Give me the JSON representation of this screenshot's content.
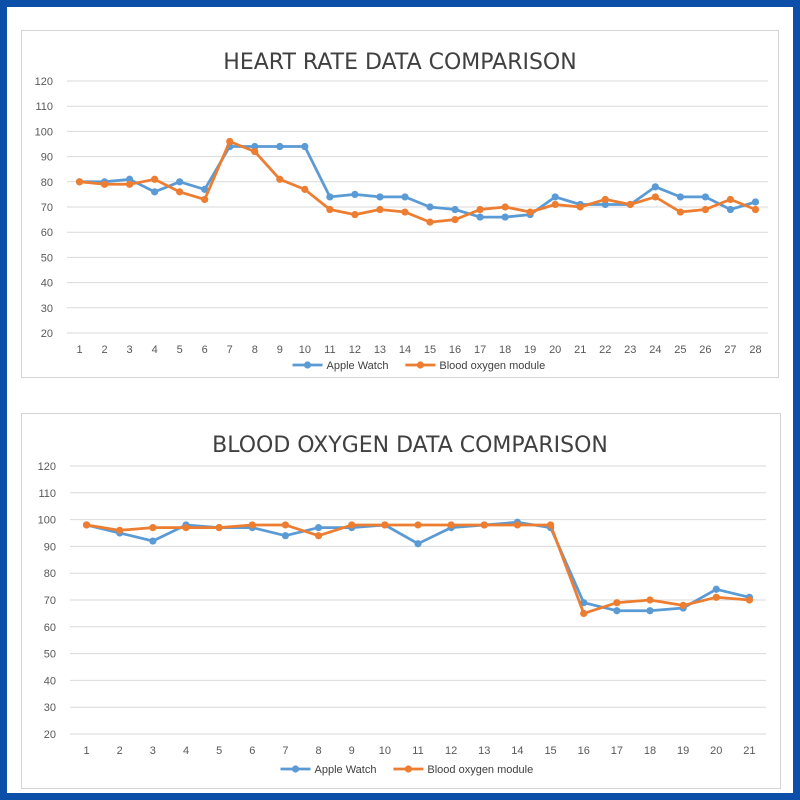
{
  "chart_data": [
    {
      "type": "line",
      "title": "HEART RATE DATA COMPARISON",
      "xlabel": "",
      "ylabel": "",
      "ylim": [
        20,
        120
      ],
      "yticks": [
        20,
        30,
        40,
        50,
        60,
        70,
        80,
        90,
        100,
        110,
        120
      ],
      "categories": [
        "1",
        "2",
        "3",
        "4",
        "5",
        "6",
        "7",
        "8",
        "9",
        "10",
        "11",
        "12",
        "13",
        "14",
        "15",
        "16",
        "17",
        "18",
        "19",
        "20",
        "21",
        "22",
        "23",
        "24",
        "25",
        "26",
        "27",
        "28"
      ],
      "grid": true,
      "legend": "bottom-center",
      "series": [
        {
          "name": "Apple Watch",
          "color": "#5b9bd5",
          "values": [
            80,
            80,
            81,
            76,
            80,
            77,
            94,
            94,
            94,
            94,
            74,
            75,
            74,
            74,
            70,
            69,
            66,
            66,
            67,
            74,
            71,
            71,
            71,
            78,
            74,
            74,
            69,
            72
          ]
        },
        {
          "name": "Blood oxygen module",
          "color": "#ed7d31",
          "values": [
            80,
            79,
            79,
            81,
            76,
            73,
            96,
            92,
            81,
            77,
            69,
            67,
            69,
            68,
            64,
            65,
            69,
            70,
            68,
            71,
            70,
            73,
            71,
            74,
            68,
            69,
            73,
            69
          ]
        }
      ]
    },
    {
      "type": "line",
      "title": "BLOOD OXYGEN DATA COMPARISON",
      "xlabel": "",
      "ylabel": "",
      "ylim": [
        20,
        120
      ],
      "yticks": [
        20,
        30,
        40,
        50,
        60,
        70,
        80,
        90,
        100,
        110,
        120
      ],
      "categories": [
        "1",
        "2",
        "3",
        "4",
        "5",
        "6",
        "7",
        "8",
        "9",
        "10",
        "11",
        "12",
        "13",
        "14",
        "15",
        "16",
        "17",
        "18",
        "19",
        "20",
        "21"
      ],
      "grid": true,
      "legend": "bottom-center",
      "series": [
        {
          "name": "Apple Watch",
          "color": "#5b9bd5",
          "values": [
            98,
            95,
            92,
            98,
            97,
            97,
            94,
            97,
            97,
            98,
            91,
            97,
            98,
            99,
            97,
            69,
            66,
            66,
            67,
            74,
            71
          ]
        },
        {
          "name": "Blood oxygen module",
          "color": "#ed7d31",
          "values": [
            98,
            96,
            97,
            97,
            97,
            98,
            98,
            94,
            98,
            98,
            98,
            98,
            98,
            98,
            98,
            65,
            69,
            70,
            68,
            71,
            70
          ]
        }
      ]
    }
  ]
}
